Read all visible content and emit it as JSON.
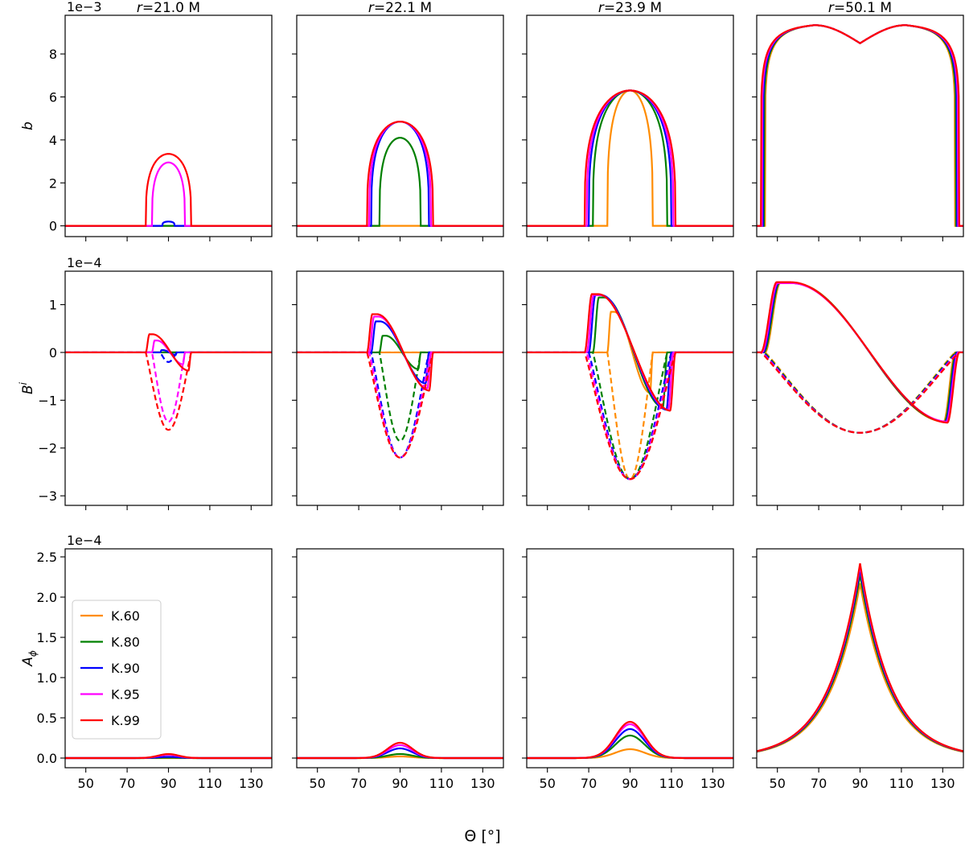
{
  "chart_data": {
    "type": "line",
    "xlabel": "Θ [°]",
    "xlim": [
      40,
      140
    ],
    "xticks": [
      50,
      70,
      90,
      110,
      130
    ],
    "columns": [
      "r=21.0 M",
      "r=22.1 M",
      "r=23.9 M",
      "r=50.1 M"
    ],
    "column_titles": [
      {
        "italic": "r",
        "rest": "=21.0 M"
      },
      {
        "italic": "r",
        "rest": "=22.1 M"
      },
      {
        "italic": "r",
        "rest": "=23.9 M"
      },
      {
        "italic": "r",
        "rest": "=50.1 M"
      }
    ],
    "legend": {
      "placement": "lower-left of bottom-left panel",
      "entries": [
        {
          "name": "K.60",
          "color": "#ff8c00"
        },
        {
          "name": "K.80",
          "color": "#008000"
        },
        {
          "name": "K.90",
          "color": "#0000ff"
        },
        {
          "name": "K.95",
          "color": "#ff00ff"
        },
        {
          "name": "K.99",
          "color": "#ff0000"
        }
      ]
    },
    "rows": [
      {
        "ylabel": "b",
        "ylabel_sup": "",
        "multiplier": "1e−3",
        "ylim": [
          -0.5,
          9.8
        ],
        "yticks": [
          0,
          2,
          4,
          6,
          8
        ],
        "yticklabels": [
          "0",
          "2",
          "4",
          "6",
          "8"
        ],
        "panels": [
          {
            "series": [
              {
                "name": "K.60",
                "shape": "zero"
              },
              {
                "name": "K.80",
                "shape": "zero"
              },
              {
                "name": "K.90",
                "shape": "cap",
                "peak": 0.2,
                "half_width": 3
              },
              {
                "name": "K.95",
                "shape": "cap",
                "peak": 2.95,
                "half_width": 8
              },
              {
                "name": "K.99",
                "shape": "cap",
                "peak": 3.35,
                "half_width": 11
              }
            ]
          },
          {
            "series": [
              {
                "name": "K.60",
                "shape": "zero"
              },
              {
                "name": "K.80",
                "shape": "cap",
                "peak": 4.1,
                "half_width": 10
              },
              {
                "name": "K.90",
                "shape": "cap",
                "peak": 4.85,
                "half_width": 14
              },
              {
                "name": "K.95",
                "shape": "cap",
                "peak": 4.85,
                "half_width": 15
              },
              {
                "name": "K.99",
                "shape": "cap",
                "peak": 4.85,
                "half_width": 16
              }
            ]
          },
          {
            "series": [
              {
                "name": "K.60",
                "shape": "cap",
                "peak": 6.3,
                "half_width": 11
              },
              {
                "name": "K.80",
                "shape": "cap",
                "peak": 6.3,
                "half_width": 18
              },
              {
                "name": "K.90",
                "shape": "cap",
                "peak": 6.3,
                "half_width": 20
              },
              {
                "name": "K.95",
                "shape": "cap",
                "peak": 6.3,
                "half_width": 21
              },
              {
                "name": "K.99",
                "shape": "cap",
                "peak": 6.3,
                "half_width": 22
              }
            ]
          },
          {
            "series": [
              {
                "name": "K.60",
                "shape": "double",
                "peak": 9.35,
                "dip": 8.5,
                "half_width": 46
              },
              {
                "name": "K.80",
                "shape": "double",
                "peak": 9.35,
                "dip": 8.5,
                "half_width": 46.5
              },
              {
                "name": "K.90",
                "shape": "double",
                "peak": 9.35,
                "dip": 8.5,
                "half_width": 47
              },
              {
                "name": "K.95",
                "shape": "double",
                "peak": 9.35,
                "dip": 8.5,
                "half_width": 47.5
              },
              {
                "name": "K.99",
                "shape": "double",
                "peak": 9.35,
                "dip": 8.5,
                "half_width": 48
              }
            ]
          }
        ]
      },
      {
        "ylabel": "B",
        "ylabel_sup": "i",
        "multiplier": "1e−4",
        "ylim": [
          -3.2,
          1.7
        ],
        "yticks": [
          -3,
          -2,
          -1,
          0,
          1
        ],
        "yticklabels": [
          "−3",
          "−2",
          "−1",
          "0",
          "1"
        ],
        "panels": [
          {
            "series": [
              {
                "name": "K.60",
                "shape": "bfield",
                "hw": 0,
                "pos": 0,
                "neg": 0
              },
              {
                "name": "K.80",
                "shape": "bfield",
                "hw": 0,
                "pos": 0,
                "neg": 0
              },
              {
                "name": "K.90",
                "shape": "bfield",
                "hw": 4,
                "pos": 0.05,
                "neg": 0.2
              },
              {
                "name": "K.95",
                "shape": "bfield",
                "hw": 8,
                "pos": 0.25,
                "neg": 1.45
              },
              {
                "name": "K.99",
                "shape": "bfield",
                "hw": 11,
                "pos": 0.38,
                "neg": 1.62
              }
            ]
          },
          {
            "series": [
              {
                "name": "K.60",
                "shape": "bfield",
                "hw": 0,
                "pos": 0,
                "neg": 0
              },
              {
                "name": "K.80",
                "shape": "bfield",
                "hw": 10,
                "pos": 0.35,
                "neg": 1.85
              },
              {
                "name": "K.90",
                "shape": "bfield",
                "hw": 14,
                "pos": 0.65,
                "neg": 2.2
              },
              {
                "name": "K.95",
                "shape": "bfield",
                "hw": 15,
                "pos": 0.75,
                "neg": 2.2
              },
              {
                "name": "K.99",
                "shape": "bfield",
                "hw": 16,
                "pos": 0.8,
                "neg": 2.2
              }
            ]
          },
          {
            "series": [
              {
                "name": "K.60",
                "shape": "bfield",
                "hw": 11,
                "pos": 0.85,
                "neg": 2.65
              },
              {
                "name": "K.80",
                "shape": "bfield",
                "hw": 18,
                "pos": 1.15,
                "neg": 2.65
              },
              {
                "name": "K.90",
                "shape": "bfield",
                "hw": 20,
                "pos": 1.2,
                "neg": 2.65
              },
              {
                "name": "K.95",
                "shape": "bfield",
                "hw": 21,
                "pos": 1.2,
                "neg": 2.65
              },
              {
                "name": "K.99",
                "shape": "bfield",
                "hw": 22,
                "pos": 1.22,
                "neg": 2.65
              }
            ]
          },
          {
            "series": [
              {
                "name": "K.60",
                "shape": "bfield",
                "hw": 46,
                "pos": 1.45,
                "neg": 1.68
              },
              {
                "name": "K.80",
                "shape": "bfield",
                "hw": 46.5,
                "pos": 1.45,
                "neg": 1.68
              },
              {
                "name": "K.90",
                "shape": "bfield",
                "hw": 47,
                "pos": 1.45,
                "neg": 1.68
              },
              {
                "name": "K.95",
                "shape": "bfield",
                "hw": 47.5,
                "pos": 1.45,
                "neg": 1.68
              },
              {
                "name": "K.99",
                "shape": "bfield",
                "hw": 48,
                "pos": 1.47,
                "neg": 1.68
              }
            ]
          }
        ]
      },
      {
        "ylabel": "A",
        "ylabel_sub": "ϕ",
        "multiplier": "1e−4",
        "ylim": [
          -0.12,
          2.6
        ],
        "yticks": [
          0,
          0.5,
          1.0,
          1.5,
          2.0,
          2.5
        ],
        "yticklabels": [
          "0.0",
          "0.5",
          "1.0",
          "1.5",
          "2.0",
          "2.5"
        ],
        "panels": [
          {
            "series": [
              {
                "name": "K.60",
                "shape": "gauss",
                "peak": 0.0,
                "sigma": 5
              },
              {
                "name": "K.80",
                "shape": "gauss",
                "peak": 0.005,
                "sigma": 5
              },
              {
                "name": "K.90",
                "shape": "gauss",
                "peak": 0.015,
                "sigma": 5
              },
              {
                "name": "K.95",
                "shape": "gauss",
                "peak": 0.04,
                "sigma": 5
              },
              {
                "name": "K.99",
                "shape": "gauss",
                "peak": 0.05,
                "sigma": 5
              }
            ]
          },
          {
            "series": [
              {
                "name": "K.60",
                "shape": "gauss",
                "peak": 0.02,
                "sigma": 6
              },
              {
                "name": "K.80",
                "shape": "gauss",
                "peak": 0.05,
                "sigma": 6
              },
              {
                "name": "K.90",
                "shape": "gauss",
                "peak": 0.12,
                "sigma": 6
              },
              {
                "name": "K.95",
                "shape": "gauss",
                "peak": 0.16,
                "sigma": 6
              },
              {
                "name": "K.99",
                "shape": "gauss",
                "peak": 0.19,
                "sigma": 6
              }
            ]
          },
          {
            "series": [
              {
                "name": "K.60",
                "shape": "gauss",
                "peak": 0.11,
                "sigma": 7
              },
              {
                "name": "K.80",
                "shape": "gauss",
                "peak": 0.28,
                "sigma": 7
              },
              {
                "name": "K.90",
                "shape": "gauss",
                "peak": 0.36,
                "sigma": 7
              },
              {
                "name": "K.95",
                "shape": "gauss",
                "peak": 0.42,
                "sigma": 7
              },
              {
                "name": "K.99",
                "shape": "gauss",
                "peak": 0.45,
                "sigma": 7
              }
            ]
          },
          {
            "series": [
              {
                "name": "K.60",
                "shape": "cusp",
                "peak": 2.17,
                "scale": 15
              },
              {
                "name": "K.80",
                "shape": "cusp",
                "peak": 2.28,
                "scale": 15
              },
              {
                "name": "K.90",
                "shape": "cusp",
                "peak": 2.35,
                "scale": 15
              },
              {
                "name": "K.95",
                "shape": "cusp",
                "peak": 2.39,
                "scale": 15
              },
              {
                "name": "K.99",
                "shape": "cusp",
                "peak": 2.42,
                "scale": 15
              }
            ]
          }
        ]
      }
    ]
  }
}
